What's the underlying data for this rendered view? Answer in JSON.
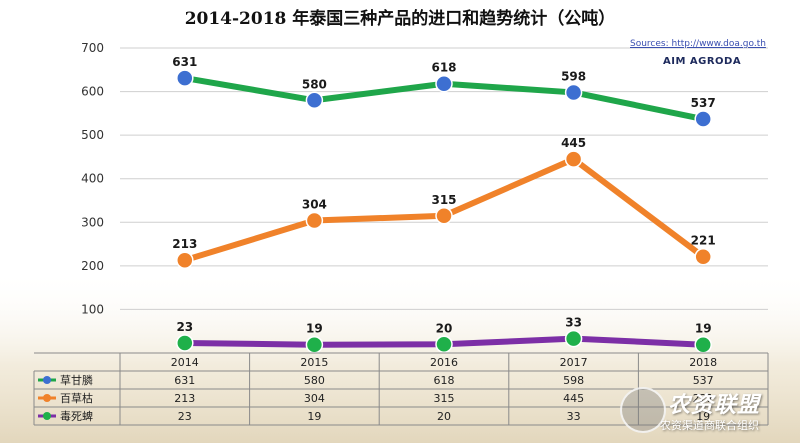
{
  "title": "2014-2018 年泰国三种产品的进口和趋势统计（公吨）",
  "source": "Sources: http://www.doa.go.th",
  "brand": "AIM AGRODA",
  "watermark": {
    "name": "农资联盟",
    "subtitle": "农资渠道商联合组织"
  },
  "colors": {
    "series_1": "#1fa64a",
    "series_2": "#f0822a",
    "series_3": "#7c2fa6",
    "marker_1": "#3d6fd1",
    "marker_2": "#f0822a",
    "marker_3": "#1fb04a"
  },
  "chart_data": {
    "type": "line",
    "title": "2014-2018 年泰国三种产品的进口和趋势统计（公吨）",
    "xlabel": "",
    "ylabel": "",
    "categories": [
      "2014",
      "2015",
      "2016",
      "2017",
      "2018"
    ],
    "ylim": [
      0,
      700
    ],
    "yticks": [
      "",
      "100",
      "200",
      "300",
      "400",
      "500",
      "600",
      "700"
    ],
    "grid": true,
    "legend": "data table below chart",
    "series": [
      {
        "name": "草甘膦",
        "values": [
          631,
          580,
          618,
          598,
          537
        ]
      },
      {
        "name": "百草枯",
        "values": [
          213,
          304,
          315,
          445,
          221
        ]
      },
      {
        "name": "毒死蜱",
        "values": [
          23,
          19,
          20,
          33,
          19
        ]
      }
    ]
  }
}
